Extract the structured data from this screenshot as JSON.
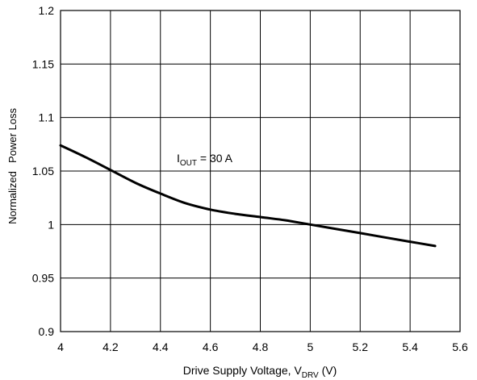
{
  "chart_data": {
    "type": "line",
    "title": "",
    "xlabel_main": "Drive Supply Voltage, V",
    "xlabel_sub": "DRV",
    "xlabel_tail": " (V)",
    "ylabel_line1": "Normalized",
    "ylabel_line2": "Power Loss",
    "xlim": [
      4,
      5.6
    ],
    "ylim": [
      0.9,
      1.2
    ],
    "xticks": [
      "4",
      "4.2",
      "4.4",
      "4.6",
      "4.8",
      "5",
      "5.2",
      "5.4",
      "5.6"
    ],
    "yticks": [
      "0.9",
      "0.95",
      "1",
      "1.05",
      "1.1",
      "1.15",
      "1.2"
    ],
    "grid": true,
    "annotation": {
      "main": "I",
      "sub": "OUT",
      "tail": " = 30 A"
    },
    "series": [
      {
        "color": "#000000",
        "x": [
          4.0,
          4.1,
          4.2,
          4.3,
          4.4,
          4.5,
          4.6,
          4.7,
          4.8,
          4.9,
          5.0,
          5.1,
          5.2,
          5.3,
          5.4,
          5.5
        ],
        "y": [
          1.074,
          1.063,
          1.051,
          1.039,
          1.029,
          1.02,
          1.014,
          1.01,
          1.007,
          1.004,
          1.0,
          0.996,
          0.992,
          0.988,
          0.984,
          0.98
        ]
      }
    ]
  }
}
